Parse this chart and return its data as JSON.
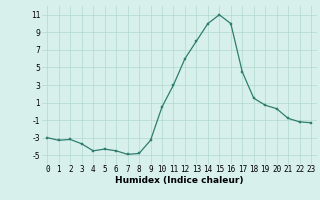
{
  "x": [
    0,
    1,
    2,
    3,
    4,
    5,
    6,
    7,
    8,
    9,
    10,
    11,
    12,
    13,
    14,
    15,
    16,
    17,
    18,
    19,
    20,
    21,
    22,
    23
  ],
  "y": [
    -3.0,
    -3.3,
    -3.2,
    -3.7,
    -4.5,
    -4.3,
    -4.5,
    -4.9,
    -4.8,
    -3.3,
    0.5,
    3.0,
    6.0,
    8.0,
    10.0,
    11.0,
    10.0,
    4.5,
    1.5,
    0.7,
    0.3,
    -0.8,
    -1.2,
    -1.3
  ],
  "line_color": "#2e7d6e",
  "marker": "s",
  "markersize": 2.0,
  "linewidth": 0.9,
  "xlabel": "Humidex (Indice chaleur)",
  "xlim": [
    -0.5,
    23.5
  ],
  "ylim": [
    -6,
    12
  ],
  "yticks": [
    -5,
    -3,
    -1,
    1,
    3,
    5,
    7,
    9,
    11
  ],
  "xticks": [
    0,
    1,
    2,
    3,
    4,
    5,
    6,
    7,
    8,
    9,
    10,
    11,
    12,
    13,
    14,
    15,
    16,
    17,
    18,
    19,
    20,
    21,
    22,
    23
  ],
  "grid_color": "#b0d8d0",
  "background_color": "#d8f0ec",
  "xlabel_fontsize": 6.5,
  "tick_fontsize": 5.5
}
